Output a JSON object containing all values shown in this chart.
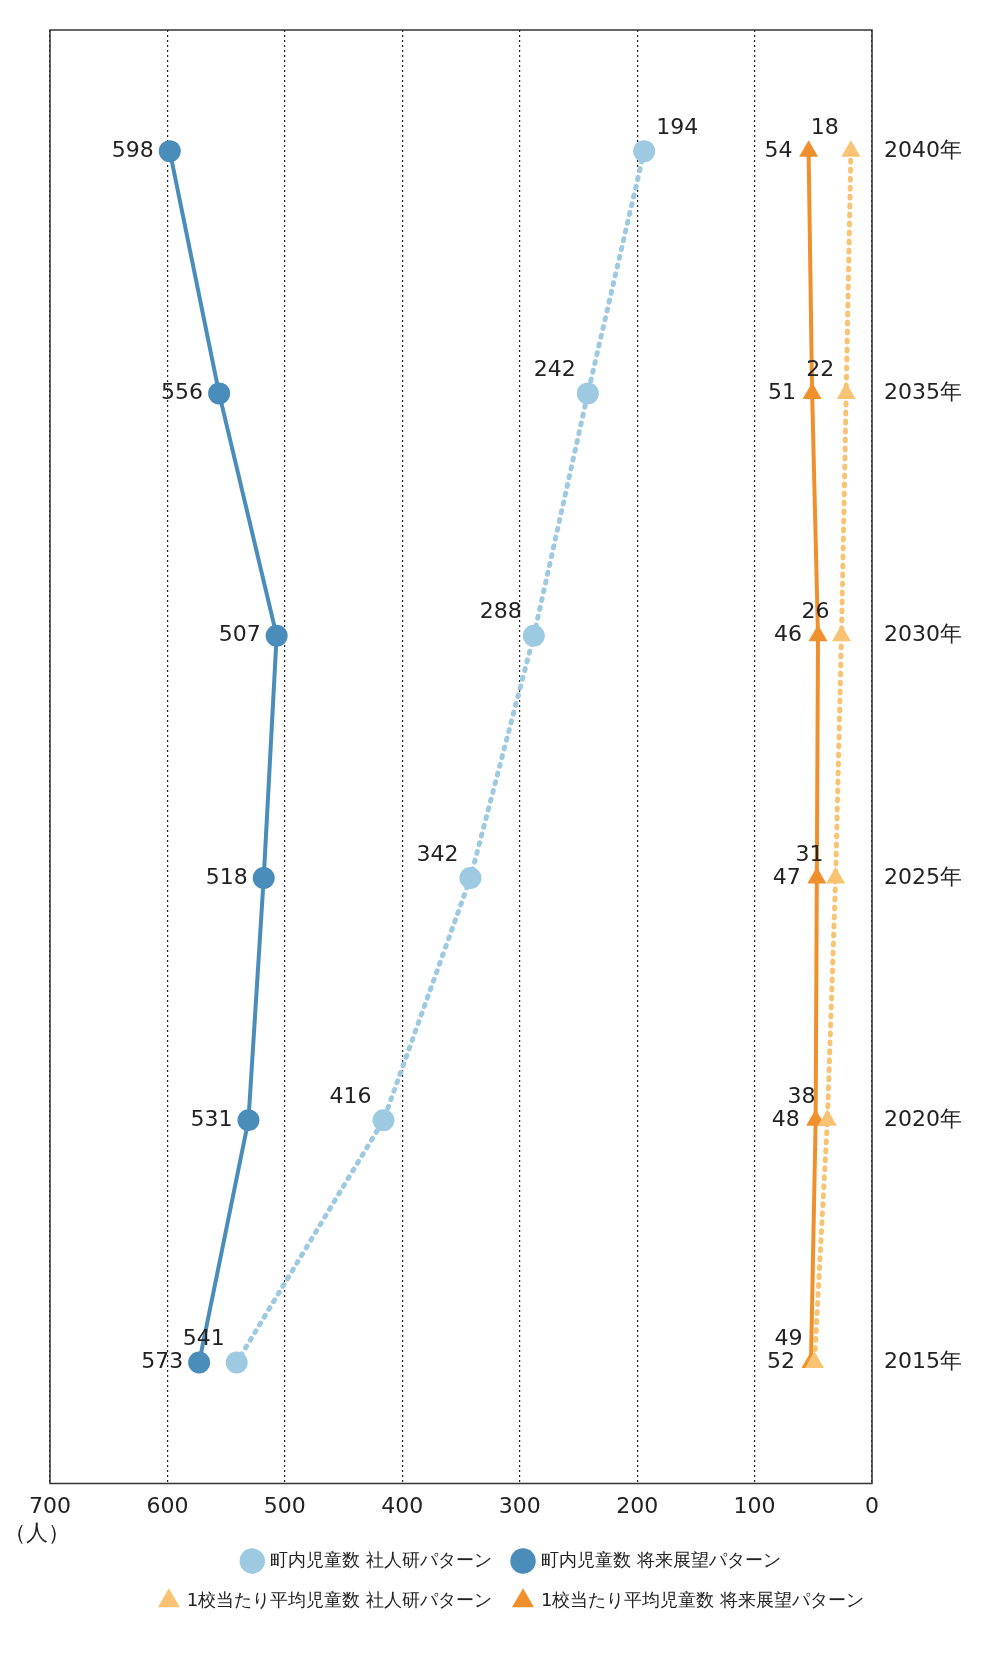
{
  "chart_data": {
    "type": "line",
    "orientation": "horizontal",
    "xlabel": "（人）",
    "categories": [
      "2040年",
      "2035年",
      "2030年",
      "2025年",
      "2020年",
      "2015年"
    ],
    "series": [
      {
        "name": "町内児童数 社人研パターン",
        "color": "#9ecae1",
        "values": [
          194,
          242,
          288,
          342,
          416,
          541
        ],
        "marker": "circle",
        "line_style": "dotted"
      },
      {
        "name": "町内児童数 将来展望パターン",
        "color": "#4a8dbb",
        "values": [
          598,
          556,
          507,
          518,
          531,
          573
        ],
        "marker": "circle",
        "line_style": "solid"
      },
      {
        "name": "1校当たり平均児童数 社人研パターン",
        "color": "#f8c473",
        "values": [
          18,
          22,
          26,
          31,
          38,
          49
        ],
        "marker": "triangle",
        "line_style": "dotted"
      },
      {
        "name": "1校当たり平均児童数 将来展望パターン",
        "color": "#f0902c",
        "values": [
          54,
          51,
          46,
          47,
          48,
          52
        ],
        "marker": "triangle",
        "line_style": "solid"
      }
    ],
    "xlim": [
      700,
      0
    ],
    "xticks": [
      700,
      600,
      500,
      400,
      300,
      200,
      100,
      0
    ],
    "grid": "x",
    "legend": "bottom",
    "data_labels": true
  }
}
